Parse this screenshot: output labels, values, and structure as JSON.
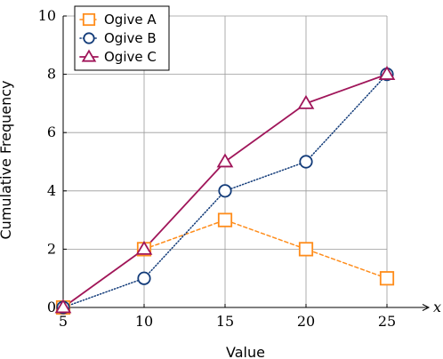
{
  "chart_data": {
    "type": "line",
    "x": [
      5,
      10,
      15,
      20,
      25
    ],
    "xlim": [
      5,
      27
    ],
    "ylim": [
      0,
      10
    ],
    "xticks": [
      "5",
      "10",
      "15",
      "20",
      "25"
    ],
    "yticks": [
      "0",
      "2",
      "4",
      "6",
      "8",
      "10"
    ],
    "xlabel": "Value",
    "ylabel": "Cumulative Frequency",
    "x_axis_end_label": "x",
    "grid": true,
    "legend_position": "top-left",
    "series": [
      {
        "name": "Ogive A",
        "values": [
          0,
          2,
          3,
          2,
          1
        ],
        "color": "#ff8c1a",
        "marker": "square",
        "line_style": "dashed"
      },
      {
        "name": "Ogive B",
        "values": [
          0,
          1,
          4,
          5,
          8
        ],
        "color": "#123b79",
        "marker": "circle",
        "line_style": "dotted"
      },
      {
        "name": "Ogive C",
        "values": [
          0,
          2,
          5,
          7,
          8
        ],
        "color": "#a0165a",
        "marker": "triangle",
        "line_style": "solid"
      }
    ]
  }
}
